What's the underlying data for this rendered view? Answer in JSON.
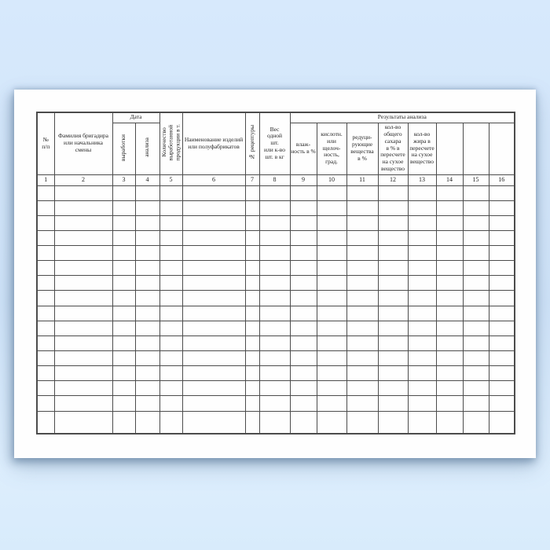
{
  "page": {
    "background_color": "#d2e5f9",
    "paper_color": "#fefefe",
    "line_color": "#4c4c4c"
  },
  "table": {
    "group_headers": {
      "date": "Дата",
      "results": "Результаты анализа"
    },
    "columns": [
      {
        "num": "1",
        "label": "№\nп/п"
      },
      {
        "num": "2",
        "label": "Фамилия бригадира\nили начальника\nсмены"
      },
      {
        "num": "3",
        "label": "выработки"
      },
      {
        "num": "4",
        "label": "анализа"
      },
      {
        "num": "5",
        "label": "Количество\nвыработанной\nпродукции в т."
      },
      {
        "num": "6",
        "label": "Наименование изделий\nили полуфабрикатов"
      },
      {
        "num": "7",
        "label": "№ рецептуры"
      },
      {
        "num": "8",
        "label": "Вес\nодной\nшт.\nили к-во\nшт. в кг"
      },
      {
        "num": "9",
        "label": "влаж-\nность в %"
      },
      {
        "num": "10",
        "label": "кислотн.\nили\nщелоч-\nность,\nград."
      },
      {
        "num": "11",
        "label": "редуци-\nрующие\nвещества\nв %"
      },
      {
        "num": "12",
        "label": "кол-во\nобщего\nсахара\nв % в\nпересчете\nна сухое\nвещество"
      },
      {
        "num": "13",
        "label": "кол-во\nжира в\nпересчете\nна сухое\nвещество"
      },
      {
        "num": "14",
        "label": ""
      },
      {
        "num": "15",
        "label": ""
      },
      {
        "num": "16",
        "label": ""
      }
    ],
    "empty_rows": 16,
    "columns_count": 16
  }
}
